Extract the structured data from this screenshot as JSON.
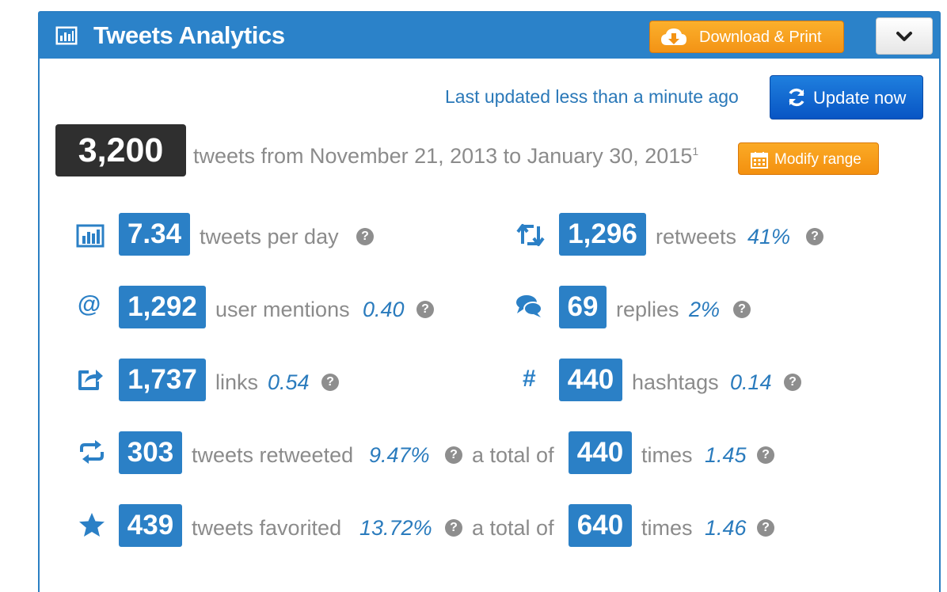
{
  "header": {
    "title": "Tweets Analytics",
    "download_label": "Download & Print"
  },
  "update": {
    "status": "Last updated less than a minute ago",
    "button_label": "Update now"
  },
  "summary": {
    "total": "3,200",
    "range_text": "tweets from November 21, 2013 to January 30, 2015",
    "footnote": "1",
    "modify_label": "Modify range"
  },
  "stats": {
    "per_day": {
      "value": "7.34",
      "label": "tweets per day"
    },
    "retweets": {
      "value": "1,296",
      "label": "retweets",
      "pct": "41%"
    },
    "mentions": {
      "value": "1,292",
      "label": "user mentions",
      "ratio": "0.40"
    },
    "replies": {
      "value": "69",
      "label": "replies",
      "pct": "2%"
    },
    "links": {
      "value": "1,737",
      "label": "links",
      "ratio": "0.54"
    },
    "hashtags": {
      "value": "440",
      "label": "hashtags",
      "ratio": "0.14"
    },
    "retweeted": {
      "value": "303",
      "label": "tweets retweeted",
      "pct": "9.47%",
      "total_label": "a total of",
      "total": "440",
      "times_label": "times",
      "times": "1.45"
    },
    "favorited": {
      "value": "439",
      "label": "tweets favorited",
      "pct": "13.72%",
      "total_label": "a total of",
      "total": "640",
      "times_label": "times",
      "times": "1.46"
    }
  },
  "help_glyph": "?",
  "hashtag_glyph": "#",
  "at_glyph": "@",
  "colors": {
    "header_blue": "#2b82c9",
    "accent_blue": "#2b80c6",
    "orange": "#f39315",
    "dark_box": "#2f2f2f"
  }
}
